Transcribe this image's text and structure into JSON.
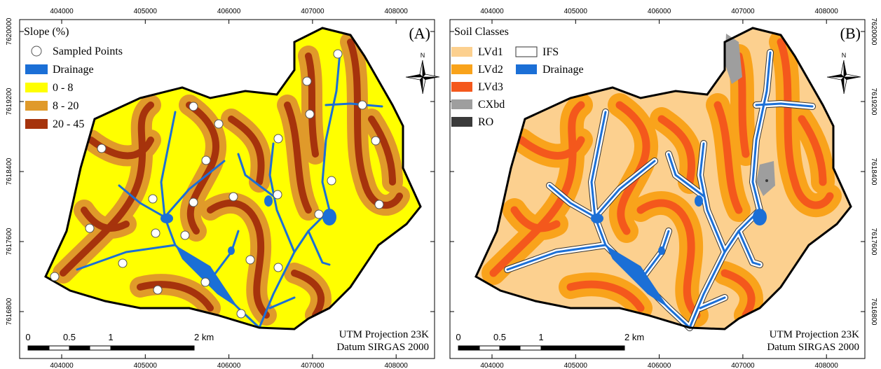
{
  "x_ticks": [
    404000,
    405000,
    406000,
    407000,
    408000
  ],
  "y_ticks": [
    7620000,
    7619200,
    7618400,
    7617600,
    7616800
  ],
  "panels": [
    {
      "label": "(A)",
      "legend_title": "Slope (%)",
      "legend": [
        "Sampled Points",
        "Drainage",
        "0 - 8",
        "8 - 20",
        "20 - 45"
      ],
      "scale_labels": [
        "0",
        "0.5",
        "1",
        "2 km"
      ],
      "north": "N",
      "projection": [
        "UTM Projection 23K",
        "Datum SIRGAS 2000"
      ]
    },
    {
      "label": "(B)",
      "legend_title": "Soil Classes",
      "legend": [
        "LVd1",
        "LVd2",
        "LVd3",
        "CXbd",
        "RO",
        "IFS",
        "Drainage"
      ],
      "scale_labels": [
        "0",
        "0.5",
        "1",
        "2 km"
      ],
      "north": "N",
      "projection": [
        "UTM Projection 23K",
        "Datum SIRGAS 2000"
      ]
    }
  ]
}
